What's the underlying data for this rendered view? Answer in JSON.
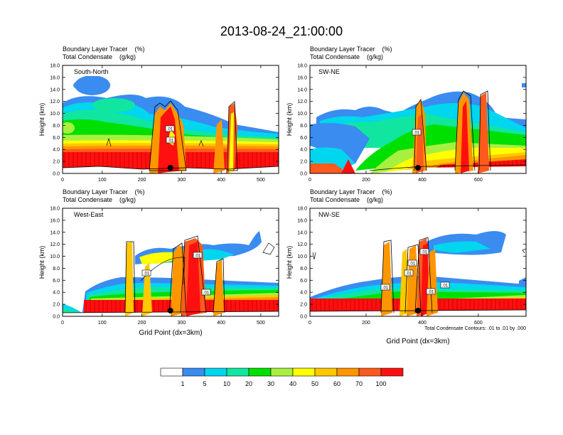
{
  "figure": {
    "title": "2013-08-24_21:00:00",
    "note": "Total Condensate Contours: .01 to .01 by .000"
  },
  "chart_data": [
    {
      "type": "heatmap",
      "panel_label": "South-North",
      "left_string_1": "Boundary Layer Tracer    (%)",
      "left_string_2": "Total Condensate    (g/kg)",
      "ylabel": "Height (km)",
      "xlabel": "",
      "xlim": [
        0,
        545
      ],
      "ylim": [
        0,
        18
      ],
      "xticks": [
        0,
        100,
        200,
        300,
        400,
        500
      ],
      "yticks": [
        "0.0",
        "2.0",
        "4.0",
        "6.0",
        "8.0",
        "10.0",
        "12.0",
        "14.0",
        "16.0",
        "18.0"
      ],
      "contour_labels": [
        ".01",
        ".01"
      ],
      "marker_x": 272
    },
    {
      "type": "heatmap",
      "panel_label": "SW-NE",
      "left_string_1": "Boundary Layer Tracer    (%)",
      "left_string_2": "Total Condensate    (g/kg)",
      "ylabel": "Height (km)",
      "xlabel": "",
      "xlim": [
        0,
        770
      ],
      "ylim": [
        0,
        18
      ],
      "xticks": [
        0,
        200,
        400,
        600
      ],
      "yticks": [
        "0.0",
        "2.0",
        "4.0",
        "6.0",
        "8.0",
        "10.0",
        "12.0",
        "14.0",
        "16.0",
        "18.0"
      ],
      "contour_labels": [
        ".01"
      ],
      "marker_x": 385
    },
    {
      "type": "heatmap",
      "panel_label": "West-East",
      "left_string_1": "Boundary Layer Tracer    (%)",
      "left_string_2": "Total Condensate    (g/kg)",
      "ylabel": "Height (km)",
      "xlabel": "Grid Point (dx=3km)",
      "xlim": [
        0,
        545
      ],
      "ylim": [
        0,
        18
      ],
      "xticks": [
        0,
        100,
        200,
        300,
        400,
        500
      ],
      "yticks": [
        "0.0",
        "2.0",
        "4.0",
        "6.0",
        "8.0",
        "10.0",
        "12.0",
        "14.0",
        "16.0",
        "18.0"
      ],
      "contour_labels": [
        ".01",
        ".01",
        ".01"
      ],
      "marker_x": 272
    },
    {
      "type": "heatmap",
      "panel_label": "NW-SE",
      "left_string_1": "Boundary Layer Tracer    (%)",
      "left_string_2": "Total Condensate    (g/kg)",
      "ylabel": "Height (km)",
      "xlabel": "Grid Point (dx=3km)",
      "xlim": [
        0,
        770
      ],
      "ylim": [
        0,
        18
      ],
      "xticks": [
        0,
        200,
        400,
        600
      ],
      "yticks": [
        "0.0",
        "2.0",
        "4.0",
        "6.0",
        "8.0",
        "10.0",
        "12.0",
        "14.0",
        "16.0",
        "18.0"
      ],
      "contour_labels": [
        ".01",
        ".01",
        ".01",
        ".01",
        ".01",
        ".01"
      ],
      "marker_x": 385
    }
  ],
  "colorbar": {
    "labels": [
      "1",
      "5",
      "10",
      "20",
      "30",
      "40",
      "50",
      "60",
      "70",
      "100"
    ],
    "colors": [
      "#ffffff",
      "#3a8cf0",
      "#00d6ee",
      "#10e6a0",
      "#00e000",
      "#a8f040",
      "#ffff00",
      "#ffc800",
      "#ff9600",
      "#ff5a1e",
      "#ff1010"
    ]
  }
}
